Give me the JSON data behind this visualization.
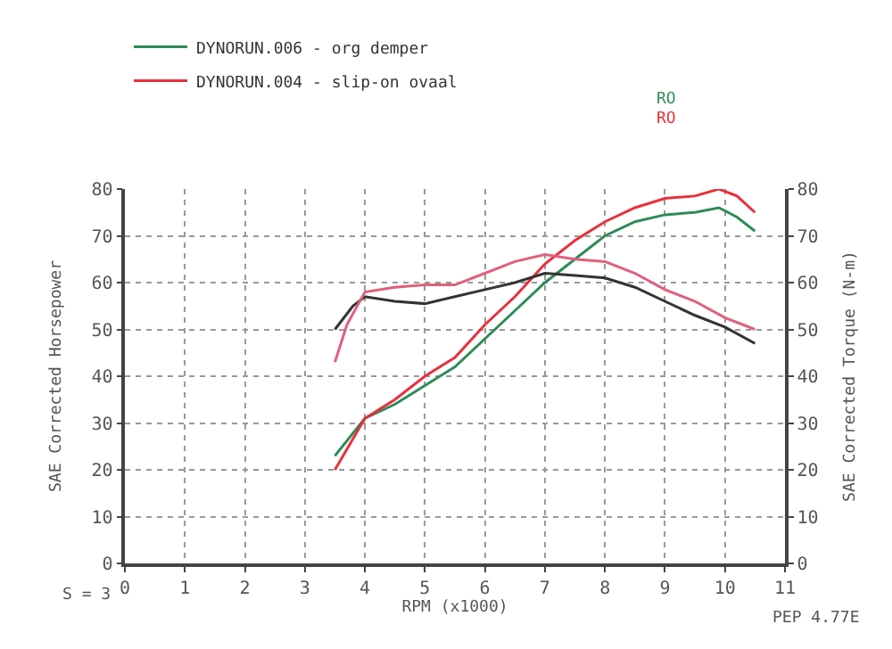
{
  "chart_data": {
    "type": "line",
    "xlabel": "RPM (x1000)",
    "ylabel": "SAE Corrected Horsepower",
    "y2label": "SAE Corrected Torque (N-m)",
    "xlim": [
      0,
      11
    ],
    "xticks": [
      0,
      1,
      2,
      3,
      4,
      5,
      6,
      7,
      8,
      9,
      10,
      11
    ],
    "ylim": [
      0,
      80
    ],
    "yticks": [
      0,
      10,
      20,
      30,
      40,
      50,
      60,
      70,
      80
    ],
    "y2lim": [
      0,
      80
    ],
    "y2ticks": [
      0,
      10,
      20,
      30,
      40,
      50,
      60,
      70,
      80
    ],
    "grid": true,
    "legend": "top left",
    "marker": "none",
    "line_style": "solid",
    "series": [
      {
        "name": "DYNORUN.006 - org demper",
        "color": "#2e8b57",
        "x": [
          3.5,
          4,
          4.5,
          5,
          5.5,
          6,
          6.5,
          7,
          7.5,
          8,
          8.5,
          9,
          9.5,
          9.9,
          10.2,
          10.5
        ],
        "values": [
          23,
          31,
          34,
          38,
          42,
          48,
          54,
          60,
          65,
          70,
          73,
          74.5,
          75,
          76,
          74,
          71
        ]
      },
      {
        "name": "DYNORUN.004 - slip-on ovaal",
        "color": "#e8303a",
        "x": [
          3.5,
          4,
          4.5,
          5,
          5.5,
          6,
          6.5,
          7,
          7.5,
          8,
          8.5,
          9,
          9.5,
          9.9,
          10.2,
          10.5
        ],
        "values": [
          20,
          31,
          35,
          40,
          44,
          51,
          57,
          64,
          69,
          73,
          76,
          78,
          78.5,
          80,
          78.5,
          75
        ]
      },
      {
        "color": "#333333",
        "axis": "y2",
        "x": [
          3.5,
          3.8,
          4,
          4.5,
          5,
          5.5,
          6,
          6.5,
          7,
          7.5,
          8,
          8.5,
          9,
          9.5,
          10,
          10.5
        ],
        "values": [
          50,
          55,
          57,
          56,
          55.5,
          57,
          58.5,
          60,
          62,
          61.5,
          61,
          59,
          56,
          53,
          50.5,
          47
        ]
      },
      {
        "color": "#e0607a",
        "axis": "y2",
        "x": [
          3.5,
          3.7,
          4,
          4.5,
          5,
          5.5,
          6,
          6.5,
          7,
          7.5,
          8,
          8.5,
          9,
          9.5,
          10,
          10.5
        ],
        "values": [
          43,
          51,
          58,
          59,
          59.5,
          59.5,
          62,
          64.5,
          66,
          65,
          64.5,
          62,
          58.5,
          56,
          52.5,
          50
        ]
      }
    ],
    "annotations": [
      "RO",
      "RO",
      "S = 3",
      "PEP 4.77E"
    ]
  }
}
